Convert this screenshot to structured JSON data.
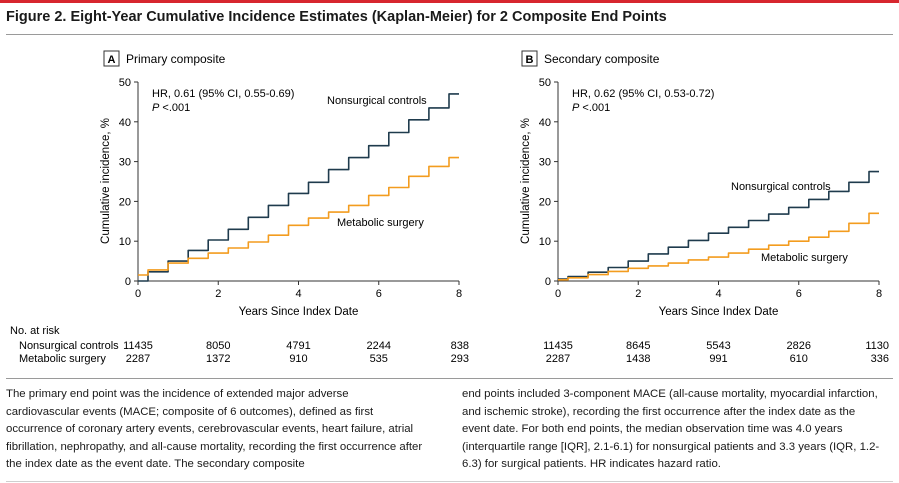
{
  "figure": {
    "title": "Figure 2. Eight-Year Cumulative Incidence Estimates (Kaplan-Meier) for 2 Composite End Points",
    "accent_color": "#d7262e"
  },
  "risk_table": {
    "title": "No. at risk",
    "rows": [
      {
        "label": "Nonsurgical controls",
        "panel_a": [
          "11435",
          "8050",
          "4791",
          "2244",
          "838"
        ],
        "panel_b": [
          "11435",
          "8645",
          "5543",
          "2826",
          "1130"
        ]
      },
      {
        "label": "Metabolic surgery",
        "panel_a": [
          "2287",
          "1372",
          "910",
          "535",
          "293"
        ],
        "panel_b": [
          "2287",
          "1438",
          "991",
          "610",
          "336"
        ]
      }
    ]
  },
  "chart_data": [
    {
      "type": "line",
      "panel_letter": "A",
      "title": "Primary composite",
      "xlabel": "Years Since Index Date",
      "ylabel": "Cumulative incidence, %",
      "xlim": [
        0,
        8
      ],
      "ylim": [
        0,
        50
      ],
      "xticks": [
        "0",
        "2",
        "4",
        "6",
        "8"
      ],
      "yticks": [
        "0",
        "10",
        "20",
        "30",
        "40",
        "50"
      ],
      "grid": false,
      "annotation": {
        "hr": "HR, 0.61 (95% CI, 0.55-0.69)",
        "p_italic": "P",
        "p_rest": " <.001"
      },
      "series": [
        {
          "name": "Nonsurgical controls",
          "color": "#1f3b4d",
          "x": [
            0,
            0.5,
            1,
            1.5,
            2,
            2.5,
            3,
            3.5,
            4,
            4.5,
            5,
            5.5,
            6,
            6.5,
            7,
            7.5,
            8
          ],
          "y": [
            0,
            2.3,
            5,
            7.7,
            10.3,
            13,
            16,
            19,
            22,
            24.8,
            28,
            31,
            34,
            37.3,
            40.5,
            43.5,
            47
          ]
        },
        {
          "name": "Metabolic surgery",
          "color": "#f39c1f",
          "x": [
            0,
            0.5,
            1,
            1.5,
            2,
            2.5,
            3,
            3.5,
            4,
            4.5,
            5,
            5.5,
            6,
            6.5,
            7,
            7.5,
            8
          ],
          "y": [
            1.5,
            2.8,
            4.5,
            5.7,
            7,
            8.3,
            9.8,
            11.5,
            14,
            15.8,
            17.3,
            19,
            21.5,
            23.5,
            26.3,
            28.8,
            31
          ]
        }
      ]
    },
    {
      "type": "line",
      "panel_letter": "B",
      "title": "Secondary composite",
      "xlabel": "Years Since Index Date",
      "ylabel": "Cumulative incidence, %",
      "xlim": [
        0,
        8
      ],
      "ylim": [
        0,
        50
      ],
      "xticks": [
        "0",
        "2",
        "4",
        "6",
        "8"
      ],
      "yticks": [
        "0",
        "10",
        "20",
        "30",
        "40",
        "50"
      ],
      "grid": false,
      "annotation": {
        "hr": "HR, 0.62 (95% CI, 0.53-0.72)",
        "p_italic": "P",
        "p_rest": " <.001"
      },
      "series": [
        {
          "name": "Nonsurgical controls",
          "color": "#1f3b4d",
          "x": [
            0,
            0.5,
            1,
            1.5,
            2,
            2.5,
            3,
            3.5,
            4,
            4.5,
            5,
            5.5,
            6,
            6.5,
            7,
            7.5,
            8
          ],
          "y": [
            0.5,
            1.1,
            2.2,
            3.4,
            5,
            6.8,
            8.5,
            10.2,
            12,
            13.5,
            15.2,
            16.8,
            18.5,
            20.5,
            22.5,
            24.8,
            27.5
          ]
        },
        {
          "name": "Metabolic surgery",
          "color": "#f39c1f",
          "x": [
            0,
            0.5,
            1,
            1.5,
            2,
            2.5,
            3,
            3.5,
            4,
            4.5,
            5,
            5.5,
            6,
            6.5,
            7,
            7.5,
            8
          ],
          "y": [
            0.3,
            0.8,
            1.6,
            2.4,
            3.2,
            3.8,
            4.5,
            5.3,
            6,
            7,
            8,
            9,
            10,
            11,
            12.5,
            14.5,
            17
          ]
        }
      ]
    }
  ],
  "caption": {
    "left": "The primary end point was the incidence of extended major adverse cardiovascular events (MACE; composite of 6 outcomes), defined as first occurrence of coronary artery events, cerebrovascular events, heart failure, atrial fibrillation, nephropathy, and all-cause mortality, recording the first occurrence after the index date as the event date. The secondary composite",
    "right": "end points included 3-component MACE (all-cause mortality, myocardial infarction, and ischemic stroke), recording the first occurrence after the index date as the event date. For both end points, the median observation time was 4.0 years (interquartile range [IQR], 2.1-6.1) for nonsurgical patients and 3.3 years (IQR, 1.2-6.3) for surgical patients. HR indicates hazard ratio."
  }
}
